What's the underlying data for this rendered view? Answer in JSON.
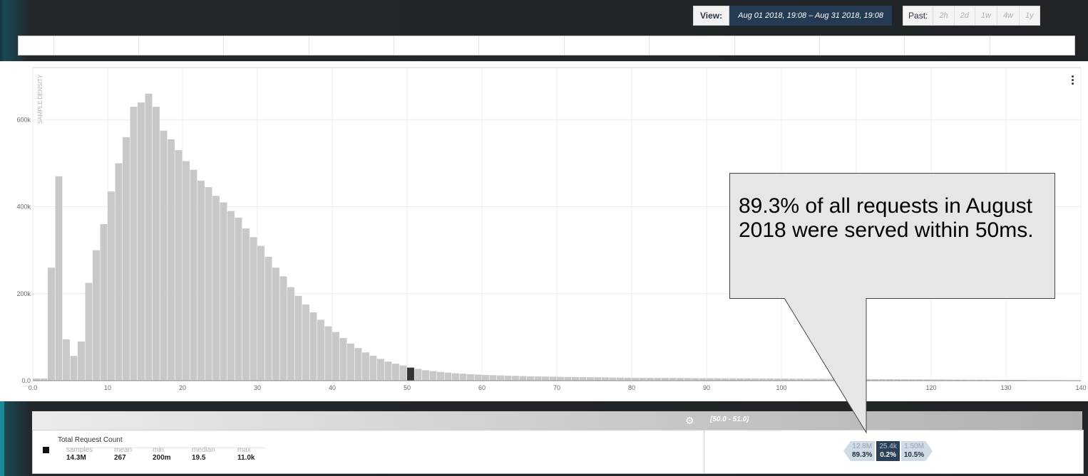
{
  "header": {
    "view_label": "View:",
    "view_range": "Aug 01 2018, 19:08  –  Aug 31 2018, 19:08",
    "past_label": "Past:",
    "past_options": [
      "2h",
      "2d",
      "1w",
      "4w",
      "1y"
    ]
  },
  "chart_data": {
    "type": "bar",
    "ylabel": "SAMPLE DENSITY",
    "xlim": [
      0,
      140
    ],
    "ylim": [
      0,
      700000
    ],
    "bin_width": 1,
    "x_ticks": [
      "0.0",
      "10",
      "20",
      "30",
      "40",
      "50",
      "60",
      "70",
      "80",
      "90",
      "100",
      "110",
      "120",
      "130",
      "140"
    ],
    "y_ticks": [
      "0.0",
      "200k",
      "400k",
      "600k"
    ],
    "highlight_bin": [
      50,
      51
    ],
    "values": [
      5000,
      5000,
      260000,
      470000,
      95000,
      57000,
      90000,
      225000,
      300000,
      360000,
      435000,
      500000,
      560000,
      630000,
      640000,
      660000,
      630000,
      575000,
      555000,
      530000,
      505000,
      485000,
      460000,
      445000,
      425000,
      410000,
      390000,
      375000,
      350000,
      330000,
      310000,
      285000,
      260000,
      240000,
      215000,
      195000,
      175000,
      157000,
      140000,
      125000,
      112000,
      98000,
      85000,
      75000,
      65000,
      57000,
      50000,
      44000,
      39000,
      35000,
      30000,
      27000,
      24000,
      22000,
      20000,
      18500,
      17000,
      16000,
      15000,
      14000,
      13000,
      12500,
      12000,
      11500,
      11000,
      10500,
      10000,
      9700,
      9400,
      9100,
      8800,
      8500,
      8300,
      8100,
      7900,
      7700,
      7500,
      7300,
      7100,
      6900,
      6700,
      6600,
      6500,
      6400,
      6300,
      6200,
      6100,
      6000,
      5900,
      5800,
      5700,
      5600,
      5500,
      5400,
      5300,
      5200,
      5100,
      5000,
      4900,
      4800,
      4700,
      4600,
      4500,
      4400,
      4300,
      4200,
      4100,
      4000,
      3900,
      3800,
      3700,
      3600,
      3500,
      3400,
      3300,
      3200,
      3100,
      3000,
      2900,
      2800,
      2700,
      2600,
      2500,
      2400,
      2300,
      2200,
      2100,
      2000,
      1900,
      1800,
      1700,
      1600,
      1500,
      1400,
      1300,
      1200,
      1100,
      1000,
      900,
      800
    ]
  },
  "callout": {
    "text": "89.3% of all requests in August 2018 were served within 50ms."
  },
  "summary": {
    "range_label": "[50.0 - 51.0)",
    "series_name": "Total Request Count",
    "stats": [
      {
        "label": "samples",
        "value": "14.3M"
      },
      {
        "label": "mean",
        "value": "267"
      },
      {
        "label": "min",
        "value": "200m"
      },
      {
        "label": "median",
        "value": "19.5"
      },
      {
        "label": "max",
        "value": "11.0k"
      }
    ],
    "buckets": [
      {
        "count": "12.8M",
        "percent": "89.3%"
      },
      {
        "count": "25.4k",
        "percent": "0.2%"
      },
      {
        "count": "1.50M",
        "percent": "10.5%"
      }
    ]
  },
  "colors": {
    "bar": "#c8c8c8",
    "highlight": "#333333",
    "accent": "#243b53"
  }
}
